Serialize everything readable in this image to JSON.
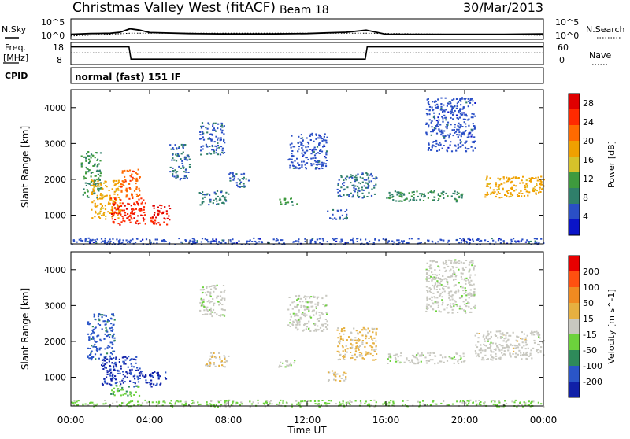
{
  "header": {
    "title": "Christmas Valley West (fitACF)",
    "beam": "Beam 18",
    "date": "30/Mar/2013"
  },
  "labels": {
    "nsky": "N.Sky",
    "nsearch": "N.Search",
    "freq_line1": "Freq.",
    "freq_line2": "[MHz]",
    "nave": "Nave",
    "cpid": "CPID",
    "cpid_value": "normal (fast) 151 IF",
    "xlabel": "Time UT",
    "ylabel": "Slant Range [km]"
  },
  "noise_axis": {
    "left_ticks": [
      "10^5",
      "10^0"
    ],
    "right_ticks": [
      "10^5",
      "10^0"
    ]
  },
  "freq_axis": {
    "left_ticks": [
      "18",
      "8"
    ],
    "right_ticks": [
      "60",
      "0"
    ]
  },
  "colors": {
    "power": [
      "#0a14c8",
      "#2a4fc6",
      "#2f7f6a",
      "#3e9a3e",
      "#d6c22a",
      "#f0a000",
      "#ff6a00",
      "#ff2a00",
      "#e00000"
    ],
    "velocity": [
      "#1020a8",
      "#2a55c8",
      "#2e8a5a",
      "#6cd23c",
      "#c8c8c0",
      "#e6b040",
      "#f08a20",
      "#ff5010",
      "#e80000"
    ]
  },
  "chart_data": [
    {
      "type": "line",
      "name": "noise",
      "x_range": [
        "00:00",
        "24:00"
      ],
      "series": [
        {
          "name": "N.Sky",
          "style": "solid",
          "x": [
            0,
            1,
            2,
            2.5,
            3,
            3.5,
            4,
            6,
            8,
            10,
            12,
            13,
            14,
            15,
            16,
            18,
            20,
            22,
            24
          ],
          "values": [
            1,
            1.2,
            1.3,
            1.6,
            2.6,
            2.2,
            1.5,
            1.2,
            1.1,
            1.1,
            1.2,
            1.4,
            1.6,
            2.2,
            1.0,
            1.0,
            1.0,
            1.0,
            1.1
          ]
        },
        {
          "name": "N.Search",
          "style": "dotted",
          "x": [
            0,
            3,
            15,
            24
          ],
          "values": [
            0.5,
            1.3,
            1.3,
            0.7
          ]
        }
      ]
    },
    {
      "type": "line",
      "name": "frequency",
      "x_range": [
        "00:00",
        "24:00"
      ],
      "series": [
        {
          "name": "Freq.",
          "style": "solid",
          "x": [
            0,
            2.95,
            3.05,
            14.95,
            15.05,
            24
          ],
          "values": [
            16.5,
            16.5,
            10.0,
            10.0,
            16.5,
            16.5
          ]
        },
        {
          "name": "Nave",
          "style": "dotted",
          "x": [
            0,
            24
          ],
          "values": [
            13.3,
            13.3
          ]
        }
      ]
    },
    {
      "type": "heatmap",
      "name": "power",
      "title": "",
      "xlabel": "Time UT",
      "ylabel": "Slant Range [km]",
      "x_ticks": [
        "00:00",
        "04:00",
        "08:00",
        "12:00",
        "16:00",
        "20:00",
        "00:00"
      ],
      "y_ticks": [
        1000,
        2000,
        3000,
        4000
      ],
      "ylim": [
        200,
        4500
      ],
      "colorbar": {
        "label": "Power [dB]",
        "ticks": [
          4,
          8,
          12,
          16,
          20,
          24,
          28
        ],
        "range": [
          0,
          30
        ]
      },
      "regions": [
        {
          "t0": 0.5,
          "t1": 1.5,
          "r0": 1500,
          "r1": 2800,
          "v": 10
        },
        {
          "t0": 1.0,
          "t1": 2.5,
          "r0": 900,
          "r1": 2000,
          "v": 18
        },
        {
          "t0": 2.0,
          "t1": 3.8,
          "r0": 750,
          "r1": 1500,
          "v": 26
        },
        {
          "t0": 2.5,
          "t1": 3.5,
          "r0": 1500,
          "r1": 2300,
          "v": 22
        },
        {
          "t0": 4.0,
          "t1": 5.0,
          "r0": 750,
          "r1": 1300,
          "v": 27
        },
        {
          "t0": 5.0,
          "t1": 6.0,
          "r0": 2000,
          "r1": 3000,
          "v": 7
        },
        {
          "t0": 6.5,
          "t1": 7.8,
          "r0": 2700,
          "r1": 3600,
          "v": 6
        },
        {
          "t0": 6.5,
          "t1": 8.0,
          "r0": 1300,
          "r1": 1700,
          "v": 8
        },
        {
          "t0": 8.0,
          "t1": 9.0,
          "r0": 1800,
          "r1": 2200,
          "v": 6
        },
        {
          "t0": 10.5,
          "t1": 11.5,
          "r0": 1300,
          "r1": 1500,
          "v": 11
        },
        {
          "t0": 11.0,
          "t1": 13.0,
          "r0": 2300,
          "r1": 3300,
          "v": 5
        },
        {
          "t0": 13.0,
          "t1": 14.0,
          "r0": 900,
          "r1": 1200,
          "v": 6
        },
        {
          "t0": 13.5,
          "t1": 15.5,
          "r0": 1500,
          "r1": 2200,
          "v": 7
        },
        {
          "t0": 16.0,
          "t1": 20.0,
          "r0": 1400,
          "r1": 1700,
          "v": 9
        },
        {
          "t0": 18.0,
          "t1": 20.5,
          "r0": 2800,
          "r1": 4300,
          "v": 5
        },
        {
          "t0": 21.0,
          "t1": 24.0,
          "r0": 1500,
          "r1": 2100,
          "v": 18
        },
        {
          "t0": 0.0,
          "t1": 24.0,
          "r0": 200,
          "r1": 380,
          "v": 5
        }
      ]
    },
    {
      "type": "heatmap",
      "name": "velocity",
      "title": "",
      "xlabel": "Time UT",
      "ylabel": "Slant Range [km]",
      "x_ticks": [
        "00:00",
        "04:00",
        "08:00",
        "12:00",
        "16:00",
        "20:00",
        "00:00"
      ],
      "y_ticks": [
        1000,
        2000,
        3000,
        4000
      ],
      "ylim": [
        200,
        4500
      ],
      "colorbar": {
        "label": "Velocity [m s^-1]",
        "ticks": [
          200,
          100,
          50,
          15,
          -15,
          -50,
          -100,
          -200
        ],
        "range": [
          -250,
          250
        ]
      },
      "regions": [
        {
          "t0": 0.8,
          "t1": 2.2,
          "r0": 1500,
          "r1": 2800,
          "v": -160
        },
        {
          "t0": 1.5,
          "t1": 3.5,
          "r0": 750,
          "r1": 1600,
          "v": -200
        },
        {
          "t0": 2.0,
          "t1": 3.5,
          "r0": 500,
          "r1": 800,
          "v": -80
        },
        {
          "t0": 3.5,
          "t1": 4.8,
          "r0": 750,
          "r1": 1200,
          "v": -200
        },
        {
          "t0": 6.5,
          "t1": 7.8,
          "r0": 2700,
          "r1": 3600,
          "v": -8
        },
        {
          "t0": 6.8,
          "t1": 8.0,
          "r0": 1300,
          "r1": 1700,
          "v": 20
        },
        {
          "t0": 10.5,
          "t1": 11.5,
          "r0": 1300,
          "r1": 1500,
          "v": -20
        },
        {
          "t0": 11.0,
          "t1": 13.0,
          "r0": 2300,
          "r1": 3300,
          "v": -5
        },
        {
          "t0": 13.5,
          "t1": 15.5,
          "r0": 1500,
          "r1": 2400,
          "v": 40
        },
        {
          "t0": 13.0,
          "t1": 14.0,
          "r0": 900,
          "r1": 1200,
          "v": 30
        },
        {
          "t0": 16.0,
          "t1": 20.0,
          "r0": 1400,
          "r1": 1700,
          "v": -5
        },
        {
          "t0": 18.0,
          "t1": 20.5,
          "r0": 2800,
          "r1": 4300,
          "v": -5
        },
        {
          "t0": 20.5,
          "t1": 24.0,
          "r0": 1500,
          "r1": 2300,
          "v": 0
        },
        {
          "t0": 0.0,
          "t1": 24.0,
          "r0": 200,
          "r1": 380,
          "v": -40
        }
      ]
    }
  ]
}
